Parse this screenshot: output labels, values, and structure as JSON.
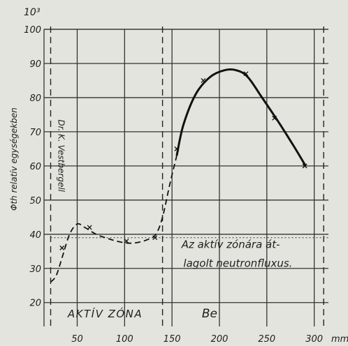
{
  "chart_data": {
    "type": "line",
    "title": "",
    "scale_exponent": "10³",
    "ylabel": "Φth relatív egységekben",
    "xlabel": "",
    "x_unit": "mm",
    "xlim": [
      15,
      315
    ],
    "ylim": [
      13,
      100
    ],
    "x_ticks": [
      50,
      100,
      150,
      200,
      250,
      300
    ],
    "y_ticks": [
      20,
      30,
      40,
      50,
      60,
      70,
      80,
      90,
      100
    ],
    "grid": true,
    "series": [
      {
        "name": "",
        "style": "dashed",
        "points": [
          [
            22,
            26
          ],
          [
            28,
            28
          ],
          [
            35,
            34
          ],
          [
            42,
            40
          ],
          [
            50,
            43
          ],
          [
            58,
            42
          ],
          [
            70,
            40
          ],
          [
            85,
            38.5
          ],
          [
            100,
            37.5
          ],
          [
            112,
            37.5
          ],
          [
            125,
            38.5
          ],
          [
            133,
            40
          ],
          [
            140,
            45
          ],
          [
            148,
            55
          ],
          [
            155,
            63
          ]
        ]
      },
      {
        "name": "",
        "style": "solid",
        "points": [
          [
            155,
            63
          ],
          [
            162,
            72
          ],
          [
            175,
            81
          ],
          [
            190,
            86
          ],
          [
            205,
            88
          ],
          [
            218,
            88
          ],
          [
            230,
            86
          ],
          [
            245,
            80
          ],
          [
            262,
            73
          ],
          [
            278,
            66
          ],
          [
            291,
            60
          ]
        ]
      }
    ],
    "markers": [
      [
        34,
        36
      ],
      [
        63,
        42
      ],
      [
        102,
        38
      ],
      [
        132,
        39
      ],
      [
        155,
        65
      ],
      [
        183,
        85
      ],
      [
        228,
        87
      ],
      [
        258,
        74
      ],
      [
        290,
        60
      ]
    ],
    "regions": [
      {
        "label": "AKTÍV ZÓNA",
        "x0": 22,
        "x1": 140
      },
      {
        "label": "Be",
        "x0": 140,
        "x1": 310
      }
    ],
    "vertical_dashed_lines": [
      22,
      140,
      310
    ],
    "reference_line": {
      "y": 39,
      "label": "Az aktív zónára át-lagolt neutronfluxus."
    },
    "annotations": [
      {
        "text": "Dr. K. Vestbergell",
        "x": 30,
        "y": 63
      }
    ]
  }
}
